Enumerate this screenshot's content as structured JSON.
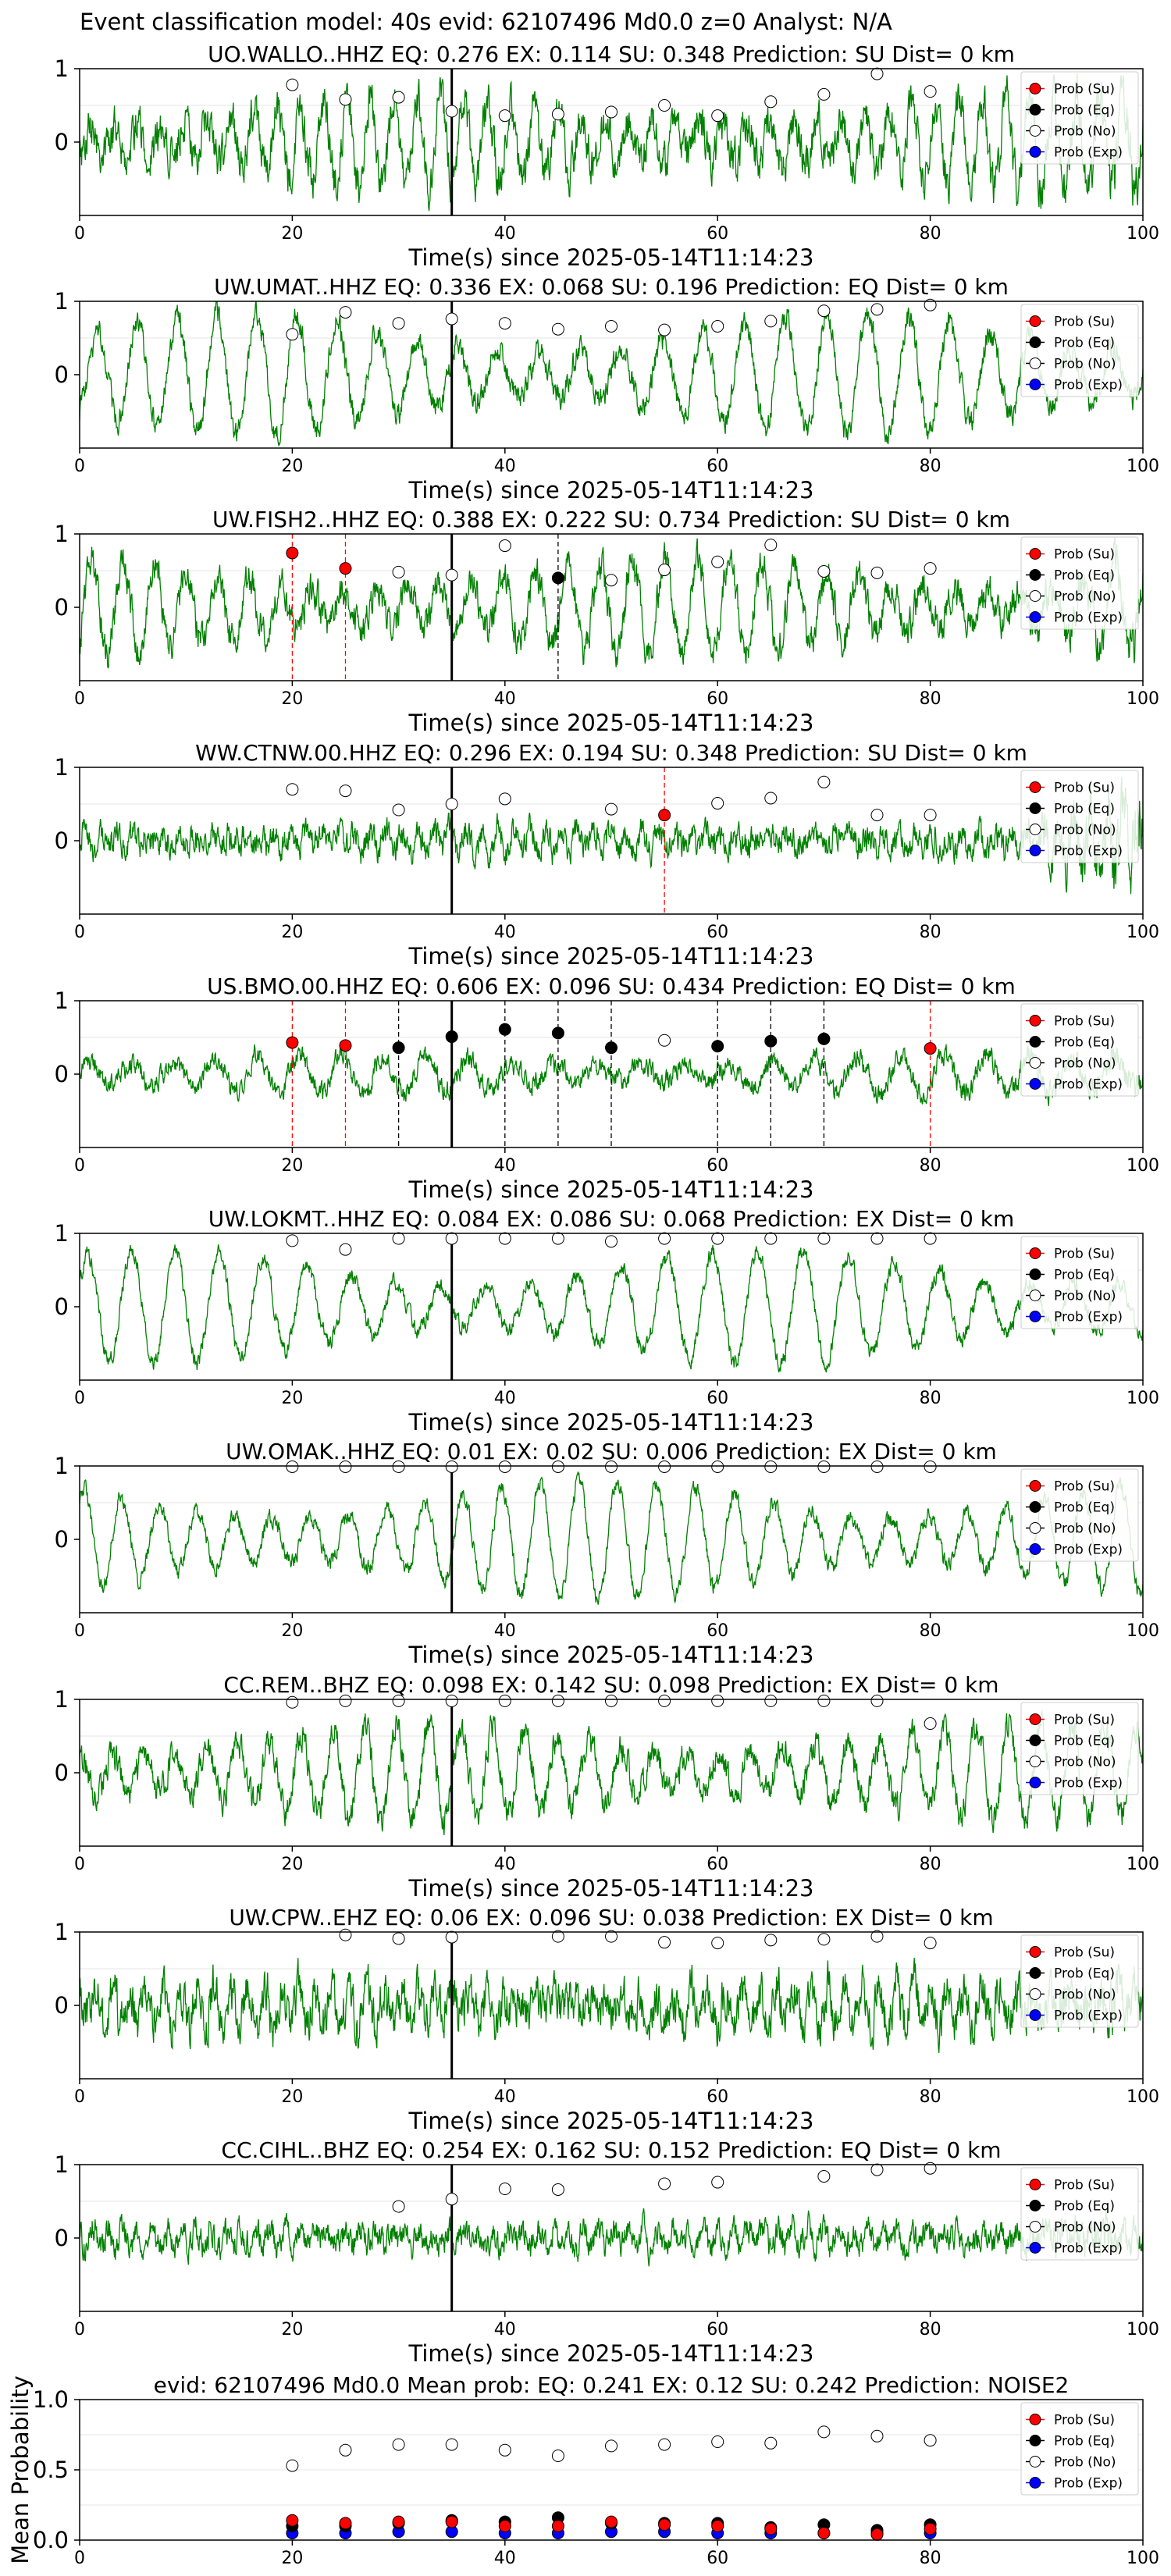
{
  "figure_title": "Event classification model: 40s evid: 62107496 Md0.0 z=0 Analyst: N/A",
  "legend_labels": [
    "Prob (Su)",
    "Prob (Eq)",
    "Prob (No)",
    "Prob (Exp)"
  ],
  "colors": {
    "waveform": "#008000",
    "su": "#ff0000",
    "eq": "#000000",
    "no": "#ffffff",
    "exp": "#0000ff",
    "su_line": "#ff0000",
    "eq_line": "#000000",
    "arrival_line": "#000000"
  },
  "chart_data": [
    {
      "type": "line",
      "title": "UO.WALLO..HHZ   EQ: 0.276  EX: 0.114  SU: 0.348   Prediction: SU    Dist= 0 km",
      "xlabel": "Time(s) since 2025-05-14T11:14:23",
      "xlim": [
        0,
        100
      ],
      "ylim": [
        -1,
        1
      ],
      "xticks": [
        0,
        20,
        40,
        60,
        80,
        100
      ],
      "yticks": [
        0,
        1
      ],
      "arrival": 35,
      "amp": 0.55,
      "noise": 0.5,
      "period": 2.2,
      "tail_boost": 1.3,
      "prob_no": {
        "x": [
          20,
          25,
          30,
          35,
          40,
          45,
          50,
          55,
          60,
          65,
          70,
          75,
          80
        ],
        "y": [
          0.78,
          0.58,
          0.61,
          0.42,
          0.36,
          0.38,
          0.41,
          0.5,
          0.36,
          0.55,
          0.65,
          0.93,
          0.69
        ]
      },
      "prob_su": {
        "x": [],
        "y": []
      },
      "prob_eq": {
        "x": [],
        "y": []
      },
      "su_lines": [],
      "eq_lines": []
    },
    {
      "type": "line",
      "title": "UW.UMAT..HHZ   EQ: 0.336  EX: 0.068  SU: 0.196   Prediction: EQ    Dist= 0 km",
      "xlabel": "Time(s) since 2025-05-14T11:14:23",
      "xlim": [
        0,
        100
      ],
      "ylim": [
        -1,
        1
      ],
      "xticks": [
        0,
        20,
        40,
        60,
        80,
        100
      ],
      "yticks": [
        0,
        1
      ],
      "arrival": 35,
      "amp": 0.75,
      "noise": 0.3,
      "period": 3.8,
      "tail_boost": 1.0,
      "prob_no": {
        "x": [
          20,
          25,
          30,
          35,
          40,
          45,
          50,
          55,
          60,
          65,
          70,
          75,
          80
        ],
        "y": [
          0.55,
          0.85,
          0.7,
          0.76,
          0.7,
          0.62,
          0.66,
          0.61,
          0.66,
          0.73,
          0.87,
          0.89,
          0.95
        ]
      },
      "prob_su": {
        "x": [],
        "y": []
      },
      "prob_eq": {
        "x": [],
        "y": []
      },
      "su_lines": [],
      "eq_lines": []
    },
    {
      "type": "line",
      "title": "UW.FISH2..HHZ   EQ: 0.388  EX: 0.222  SU: 0.734   Prediction: SU    Dist= 0 km",
      "xlabel": "Time(s) since 2025-05-14T11:14:23",
      "xlim": [
        0,
        100
      ],
      "ylim": [
        -1,
        1
      ],
      "xticks": [
        0,
        20,
        40,
        60,
        80,
        100
      ],
      "yticks": [
        0,
        1
      ],
      "arrival": 35,
      "amp": 0.6,
      "noise": 0.4,
      "period": 3.0,
      "tail_boost": 1.4,
      "prob_no": {
        "x": [
          30,
          35,
          40,
          50,
          55,
          60,
          65,
          70,
          75,
          80
        ],
        "y": [
          0.48,
          0.44,
          0.84,
          0.37,
          0.51,
          0.62,
          0.85,
          0.49,
          0.47,
          0.53
        ]
      },
      "prob_su": {
        "x": [
          20,
          25
        ],
        "y": [
          0.74,
          0.53
        ]
      },
      "prob_eq": {
        "x": [
          45
        ],
        "y": [
          0.4
        ]
      },
      "su_lines": [
        20,
        25
      ],
      "eq_lines": [
        45
      ]
    },
    {
      "type": "line",
      "title": "WW.CTNW.00.HHZ   EQ: 0.296  EX: 0.194  SU: 0.348   Prediction: SU    Dist= 0 km",
      "xlabel": "Time(s) since 2025-05-14T11:14:23",
      "xlim": [
        0,
        100
      ],
      "ylim": [
        -1,
        1
      ],
      "xticks": [
        0,
        20,
        40,
        60,
        80,
        100
      ],
      "yticks": [
        0,
        1
      ],
      "arrival": 35,
      "amp": 0.15,
      "noise": 0.35,
      "period": 1.5,
      "tail_boost": 2.8,
      "prob_no": {
        "x": [
          20,
          25,
          30,
          35,
          40,
          50,
          60,
          65,
          70,
          75,
          80
        ],
        "y": [
          0.7,
          0.68,
          0.42,
          0.5,
          0.57,
          0.43,
          0.51,
          0.58,
          0.8,
          0.35,
          0.35
        ]
      },
      "prob_su": {
        "x": [
          55
        ],
        "y": [
          0.35
        ]
      },
      "prob_eq": {
        "x": [],
        "y": []
      },
      "su_lines": [
        55
      ],
      "eq_lines": []
    },
    {
      "type": "line",
      "title": "US.BMO.00.HHZ   EQ: 0.606  EX: 0.096  SU: 0.434   Prediction: EQ    Dist= 0 km",
      "xlabel": "Time(s) since 2025-05-14T11:14:23",
      "xlim": [
        0,
        100
      ],
      "ylim": [
        -1,
        1
      ],
      "xticks": [
        0,
        20,
        40,
        60,
        80,
        100
      ],
      "yticks": [
        0,
        1
      ],
      "arrival": 35,
      "amp": 0.25,
      "noise": 0.25,
      "period": 4.0,
      "tail_boost": 1.3,
      "prob_no": {
        "x": [
          55
        ],
        "y": [
          0.46
        ]
      },
      "prob_su": {
        "x": [
          20,
          25,
          80
        ],
        "y": [
          0.43,
          0.39,
          0.35
        ]
      },
      "prob_eq": {
        "x": [
          30,
          35,
          40,
          45,
          50,
          60,
          65,
          70
        ],
        "y": [
          0.36,
          0.51,
          0.61,
          0.56,
          0.36,
          0.38,
          0.45,
          0.48
        ]
      },
      "su_lines": [
        20,
        25,
        80
      ],
      "eq_lines": [
        30,
        40,
        45,
        50,
        60,
        65,
        70
      ]
    },
    {
      "type": "line",
      "title": "UW.LOKMT..HHZ   EQ: 0.084  EX: 0.086  SU: 0.068   Prediction: EX    Dist= 0 km",
      "xlabel": "Time(s) since 2025-05-14T11:14:23",
      "xlim": [
        0,
        100
      ],
      "ylim": [
        -1,
        1
      ],
      "xticks": [
        0,
        20,
        40,
        60,
        80,
        100
      ],
      "yticks": [
        0,
        1
      ],
      "arrival": 35,
      "amp": 0.72,
      "noise": 0.2,
      "period": 4.2,
      "tail_boost": 1.0,
      "prob_no": {
        "x": [
          20,
          25,
          30,
          35,
          40,
          45,
          50,
          55,
          60,
          65,
          70,
          75,
          80
        ],
        "y": [
          0.9,
          0.78,
          0.93,
          0.93,
          0.93,
          0.93,
          0.89,
          0.93,
          0.93,
          0.93,
          0.93,
          0.93,
          0.93
        ]
      },
      "prob_su": {
        "x": [],
        "y": []
      },
      "prob_eq": {
        "x": [],
        "y": []
      },
      "su_lines": [],
      "eq_lines": []
    },
    {
      "type": "line",
      "title": "UW.OMAK..HHZ   EQ: 0.01  EX: 0.02  SU: 0.006   Prediction: EX    Dist= 0 km",
      "xlabel": "Time(s) since 2025-05-14T11:14:23",
      "xlim": [
        0,
        100
      ],
      "ylim": [
        -1,
        1
      ],
      "xticks": [
        0,
        20,
        40,
        60,
        80,
        100
      ],
      "yticks": [
        0,
        1
      ],
      "arrival": 35,
      "amp": 0.75,
      "noise": 0.2,
      "period": 3.6,
      "tail_boost": 1.0,
      "prob_no": {
        "x": [
          20,
          25,
          30,
          35,
          40,
          45,
          50,
          55,
          60,
          65,
          70,
          75,
          80
        ],
        "y": [
          0.99,
          0.99,
          0.99,
          0.99,
          0.99,
          0.99,
          0.99,
          0.99,
          0.99,
          0.99,
          0.99,
          0.99,
          0.99
        ]
      },
      "prob_su": {
        "x": [],
        "y": []
      },
      "prob_eq": {
        "x": [],
        "y": []
      },
      "su_lines": [],
      "eq_lines": []
    },
    {
      "type": "line",
      "title": "CC.REM..BHZ   EQ: 0.098  EX: 0.142  SU: 0.098   Prediction: EX    Dist= 0 km",
      "xlabel": "Time(s) since 2025-05-14T11:14:23",
      "xlim": [
        0,
        100
      ],
      "ylim": [
        -1,
        1
      ],
      "xticks": [
        0,
        20,
        40,
        60,
        80,
        100
      ],
      "yticks": [
        0,
        1
      ],
      "arrival": 35,
      "amp": 0.6,
      "noise": 0.35,
      "period": 3.0,
      "tail_boost": 1.0,
      "prob_no": {
        "x": [
          20,
          25,
          30,
          35,
          40,
          45,
          50,
          55,
          60,
          65,
          70,
          75,
          80
        ],
        "y": [
          0.96,
          0.98,
          0.98,
          0.98,
          0.98,
          0.98,
          0.98,
          0.98,
          0.98,
          0.98,
          0.98,
          0.98,
          0.67
        ]
      },
      "prob_su": {
        "x": [],
        "y": []
      },
      "prob_eq": {
        "x": [],
        "y": []
      },
      "su_lines": [],
      "eq_lines": []
    },
    {
      "type": "line",
      "title": "UW.CPW..EHZ   EQ: 0.06  EX: 0.096  SU: 0.038   Prediction: EX    Dist= 0 km",
      "xlabel": "Time(s) since 2025-05-14T11:14:23",
      "xlim": [
        0,
        100
      ],
      "ylim": [
        -1,
        1
      ],
      "xticks": [
        0,
        20,
        40,
        60,
        80,
        100
      ],
      "yticks": [
        0,
        1
      ],
      "arrival": 35,
      "amp": 0.25,
      "noise": 0.55,
      "period": 1.6,
      "tail_boost": 1.2,
      "prob_no": {
        "x": [
          25,
          30,
          35,
          45,
          50,
          55,
          60,
          65,
          70,
          75,
          80
        ],
        "y": [
          0.96,
          0.91,
          0.93,
          0.94,
          0.94,
          0.86,
          0.85,
          0.89,
          0.9,
          0.94,
          0.85
        ]
      },
      "prob_su": {
        "x": [],
        "y": []
      },
      "prob_eq": {
        "x": [],
        "y": []
      },
      "su_lines": [],
      "eq_lines": []
    },
    {
      "type": "line",
      "title": "CC.CIHL..BHZ   EQ: 0.254  EX: 0.162  SU: 0.152   Prediction: EQ    Dist= 0 km",
      "xlabel": "Time(s) since 2025-05-14T11:14:23",
      "xlim": [
        0,
        100
      ],
      "ylim": [
        -1,
        1
      ],
      "xticks": [
        0,
        20,
        40,
        60,
        80,
        100
      ],
      "yticks": [
        0,
        1
      ],
      "arrival": 35,
      "amp": 0.15,
      "noise": 0.35,
      "period": 1.4,
      "tail_boost": 1.3,
      "prob_no": {
        "x": [
          30,
          35,
          40,
          45,
          55,
          60,
          70,
          75,
          80
        ],
        "y": [
          0.43,
          0.53,
          0.67,
          0.66,
          0.74,
          0.76,
          0.84,
          0.93,
          0.95
        ]
      },
      "prob_su": {
        "x": [],
        "y": []
      },
      "prob_eq": {
        "x": [],
        "y": []
      },
      "su_lines": [],
      "eq_lines": []
    },
    {
      "type": "scatter",
      "title": "evid: 62107496  Md0.0   Mean prob:   EQ: 0.241  EX: 0.12  SU: 0.242   Prediction: NOISE2",
      "ylabel": "Mean Probability",
      "xlim": [
        0,
        100
      ],
      "ylim": [
        0,
        1
      ],
      "xticks": [
        0,
        20,
        40,
        60,
        80,
        100
      ],
      "yticks": [
        0,
        0.5,
        1
      ],
      "ytick_labels": [
        "0.0",
        "0.5",
        "1.0"
      ],
      "prob_no": {
        "x": [
          20,
          25,
          30,
          35,
          40,
          45,
          50,
          55,
          60,
          65,
          70,
          75,
          80
        ],
        "y": [
          0.53,
          0.64,
          0.68,
          0.68,
          0.64,
          0.6,
          0.67,
          0.68,
          0.7,
          0.69,
          0.77,
          0.74,
          0.71
        ]
      },
      "prob_su": {
        "x": [
          20,
          25,
          30,
          35,
          40,
          45,
          50,
          55,
          60,
          65,
          70,
          75,
          80
        ],
        "y": [
          0.14,
          0.12,
          0.13,
          0.13,
          0.1,
          0.1,
          0.13,
          0.11,
          0.1,
          0.08,
          0.05,
          0.04,
          0.08
        ]
      },
      "prob_eq": {
        "x": [
          20,
          25,
          30,
          35,
          40,
          45,
          50,
          55,
          60,
          65,
          70,
          75,
          80
        ],
        "y": [
          0.1,
          0.1,
          0.12,
          0.14,
          0.13,
          0.16,
          0.12,
          0.12,
          0.12,
          0.09,
          0.11,
          0.07,
          0.11
        ]
      },
      "prob_exp": {
        "x": [
          20,
          25,
          30,
          35,
          40,
          45,
          50,
          55,
          60,
          65,
          70,
          75,
          80
        ],
        "y": [
          0.05,
          0.05,
          0.06,
          0.06,
          0.05,
          0.05,
          0.06,
          0.06,
          0.05,
          0.05,
          0.05,
          0.05,
          0.05
        ]
      }
    }
  ]
}
